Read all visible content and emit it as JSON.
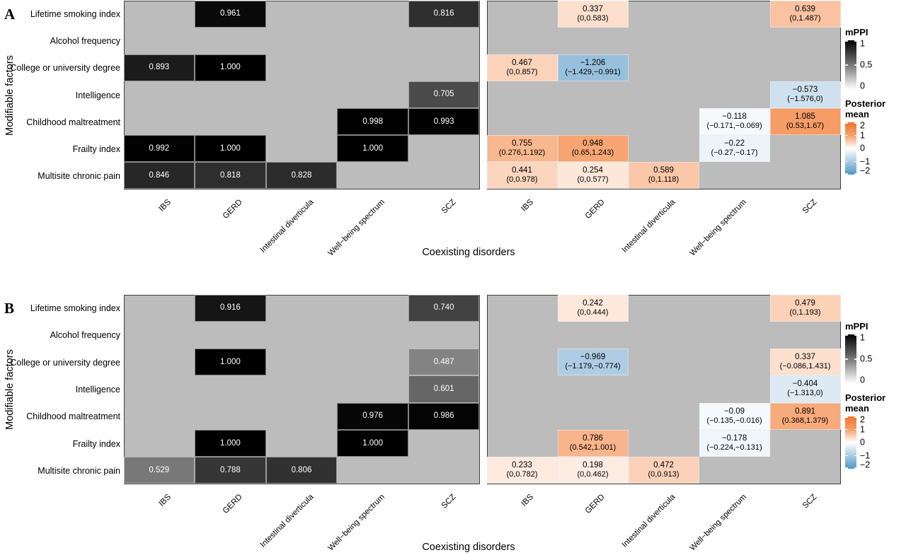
{
  "figure": {
    "panel_labels": [
      "A",
      "B"
    ],
    "axis_x_title": "Coexisting disorders",
    "axis_y_title": "Modifiable factors",
    "legend": {
      "mppi_title": "mPPI",
      "mppi_ticks": [
        {
          "label": "1",
          "pos": 0
        },
        {
          "label": "0.5",
          "pos": 0.5
        },
        {
          "label": "0",
          "pos": 1
        }
      ],
      "posterior_title": "Posterior mean",
      "posterior_ticks": [
        {
          "label": "2",
          "pos": 0
        },
        {
          "label": "1",
          "pos": 0.25
        },
        {
          "label": "0",
          "pos": 0.5
        },
        {
          "label": "−1",
          "pos": 0.75
        },
        {
          "label": "−2",
          "pos": 1
        }
      ]
    },
    "colors": {
      "panel_bg": "#bcbcbc",
      "panel_border": "#3f3f3f",
      "mppi_low": "#ffffff",
      "mppi_high": "#000000",
      "posterior_pos_mid": "#f6a06b",
      "posterior_pos_high": "#f1742d",
      "posterior_neg_mid": "#abcbe3",
      "posterior_neg_high": "#4d97c7",
      "cell_text_dark_bg": "#ffffff",
      "cell_text_light_bg": "#000000"
    }
  },
  "chart_data": [
    {
      "type": "heatmap",
      "panel": "A",
      "rows": [
        "Lifetime smoking index",
        "Alcohol frequency",
        "College or university degree",
        "Intelligence",
        "Childhood maltreatment",
        "Frailty index",
        "Multisite chronic pain"
      ],
      "columns": [
        "IBS",
        "GERD",
        "Intestinal diverticula",
        "Well−being spectrum",
        "SCZ"
      ],
      "mppi_scale": {
        "domain": [
          0,
          1
        ],
        "low": "#ffffff",
        "high": "#000000"
      },
      "posterior_scale": {
        "domain": [
          -2,
          2
        ],
        "low": "#4d97c7",
        "mid": "#ffffff",
        "high": "#f1742d"
      },
      "mppi_cells": [
        {
          "row": 0,
          "col": 1,
          "value": 0.961,
          "label": "0.961"
        },
        {
          "row": 0,
          "col": 4,
          "value": 0.816,
          "label": "0.816"
        },
        {
          "row": 2,
          "col": 0,
          "value": 0.893,
          "label": "0.893"
        },
        {
          "row": 2,
          "col": 1,
          "value": 1.0,
          "label": "1.000"
        },
        {
          "row": 3,
          "col": 4,
          "value": 0.705,
          "label": "0.705"
        },
        {
          "row": 4,
          "col": 3,
          "value": 0.998,
          "label": "0.998"
        },
        {
          "row": 4,
          "col": 4,
          "value": 0.993,
          "label": "0.993"
        },
        {
          "row": 5,
          "col": 0,
          "value": 0.992,
          "label": "0.992"
        },
        {
          "row": 5,
          "col": 1,
          "value": 1.0,
          "label": "1.000"
        },
        {
          "row": 5,
          "col": 3,
          "value": 1.0,
          "label": "1.000"
        },
        {
          "row": 6,
          "col": 0,
          "value": 0.846,
          "label": "0.846"
        },
        {
          "row": 6,
          "col": 1,
          "value": 0.818,
          "label": "0.818"
        },
        {
          "row": 6,
          "col": 2,
          "value": 0.828,
          "label": "0.828"
        }
      ],
      "posterior_cells": [
        {
          "row": 0,
          "col": 1,
          "mean": 0.337,
          "label": "0.337",
          "ci": "(0,0.583)"
        },
        {
          "row": 0,
          "col": 4,
          "mean": 0.639,
          "label": "0.639",
          "ci": "(0,1.487)"
        },
        {
          "row": 2,
          "col": 0,
          "mean": 0.467,
          "label": "0.467",
          "ci": "(0,0.857)"
        },
        {
          "row": 2,
          "col": 1,
          "mean": -1.206,
          "label": "−1.206",
          "ci": "(−1.429,−0.991)"
        },
        {
          "row": 3,
          "col": 4,
          "mean": -0.573,
          "label": "−0.573",
          "ci": "(−1.576,0)"
        },
        {
          "row": 4,
          "col": 3,
          "mean": -0.118,
          "label": "−0.118",
          "ci": "(−0.171,−0.069)"
        },
        {
          "row": 4,
          "col": 4,
          "mean": 1.085,
          "label": "1.085",
          "ci": "(0.53,1.67)"
        },
        {
          "row": 5,
          "col": 0,
          "mean": 0.755,
          "label": "0.755",
          "ci": "(0.276,1.192)"
        },
        {
          "row": 5,
          "col": 1,
          "mean": 0.948,
          "label": "0.948",
          "ci": "(0.65,1.243)"
        },
        {
          "row": 5,
          "col": 3,
          "mean": -0.22,
          "label": "−0.22",
          "ci": "(−0.27,−0.17)"
        },
        {
          "row": 6,
          "col": 0,
          "mean": 0.441,
          "label": "0.441",
          "ci": "(0,0.978)"
        },
        {
          "row": 6,
          "col": 1,
          "mean": 0.254,
          "label": "0.254",
          "ci": "(0,0.577)"
        },
        {
          "row": 6,
          "col": 2,
          "mean": 0.589,
          "label": "0.589",
          "ci": "(0,1.118)"
        }
      ]
    },
    {
      "type": "heatmap",
      "panel": "B",
      "rows": [
        "Lifetime smoking index",
        "Alcohol frequency",
        "College or university degree",
        "Intelligence",
        "Childhood maltreatment",
        "Frailty index",
        "Multisite chronic pain"
      ],
      "columns": [
        "IBS",
        "GERD",
        "Intestinal diverticula",
        "Well−being spectrum",
        "SCZ"
      ],
      "mppi_scale": {
        "domain": [
          0,
          1
        ],
        "low": "#ffffff",
        "high": "#000000"
      },
      "posterior_scale": {
        "domain": [
          -2,
          2
        ],
        "low": "#4d97c7",
        "mid": "#ffffff",
        "high": "#f1742d"
      },
      "mppi_cells": [
        {
          "row": 0,
          "col": 1,
          "value": 0.916,
          "label": "0.916"
        },
        {
          "row": 0,
          "col": 4,
          "value": 0.74,
          "label": "0.740"
        },
        {
          "row": 2,
          "col": 1,
          "value": 1.0,
          "label": "1.000"
        },
        {
          "row": 2,
          "col": 4,
          "value": 0.487,
          "label": "0.487"
        },
        {
          "row": 3,
          "col": 4,
          "value": 0.601,
          "label": "0.601"
        },
        {
          "row": 4,
          "col": 3,
          "value": 0.976,
          "label": "0.976"
        },
        {
          "row": 4,
          "col": 4,
          "value": 0.986,
          "label": "0.986"
        },
        {
          "row": 5,
          "col": 1,
          "value": 1.0,
          "label": "1.000"
        },
        {
          "row": 5,
          "col": 3,
          "value": 1.0,
          "label": "1.000"
        },
        {
          "row": 6,
          "col": 0,
          "value": 0.529,
          "label": "0.529"
        },
        {
          "row": 6,
          "col": 1,
          "value": 0.788,
          "label": "0.788"
        },
        {
          "row": 6,
          "col": 2,
          "value": 0.806,
          "label": "0.806"
        }
      ],
      "posterior_cells": [
        {
          "row": 0,
          "col": 1,
          "mean": 0.242,
          "label": "0.242",
          "ci": "(0,0.444)"
        },
        {
          "row": 0,
          "col": 4,
          "mean": 0.479,
          "label": "0.479",
          "ci": "(0,1.193)"
        },
        {
          "row": 2,
          "col": 1,
          "mean": -0.969,
          "label": "−0.969",
          "ci": "(−1.179,−0.774)"
        },
        {
          "row": 2,
          "col": 4,
          "mean": 0.337,
          "label": "0.337",
          "ci": "(−0.086,1.431)"
        },
        {
          "row": 3,
          "col": 4,
          "mean": -0.404,
          "label": "−0.404",
          "ci": "(−1.313,0)"
        },
        {
          "row": 4,
          "col": 3,
          "mean": -0.09,
          "label": "−0.09",
          "ci": "(−0.135,−0.016)"
        },
        {
          "row": 4,
          "col": 4,
          "mean": 0.891,
          "label": "0.891",
          "ci": "(0.368,1.379)"
        },
        {
          "row": 5,
          "col": 1,
          "mean": 0.786,
          "label": "0.786",
          "ci": "(0.542,1.001)"
        },
        {
          "row": 5,
          "col": 3,
          "mean": -0.178,
          "label": "−0.178",
          "ci": "(−0.224,−0.131)"
        },
        {
          "row": 6,
          "col": 0,
          "mean": 0.233,
          "label": "0.233",
          "ci": "(0,0.782)"
        },
        {
          "row": 6,
          "col": 1,
          "mean": 0.198,
          "label": "0.198",
          "ci": "(0,0.462)"
        },
        {
          "row": 6,
          "col": 2,
          "mean": 0.472,
          "label": "0.472",
          "ci": "(0,0.913)"
        }
      ]
    }
  ]
}
